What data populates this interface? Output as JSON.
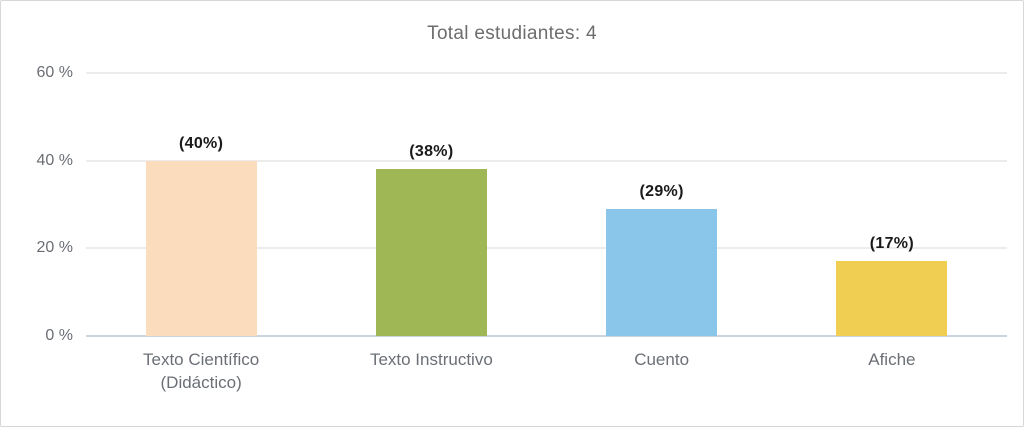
{
  "chart_data": {
    "type": "bar",
    "title": "Total estudiantes: 4",
    "categories": [
      "Texto Científico\n(Didáctico)",
      "Texto Instructivo",
      "Cuento",
      "Afiche"
    ],
    "values": [
      40,
      38,
      29,
      17
    ],
    "bar_labels": [
      "(40%)",
      "(38%)",
      "(29%)",
      "(17%)"
    ],
    "bar_colors": [
      "#FBDCBD",
      "#9FB855",
      "#8AC6E9",
      "#F0CE51"
    ],
    "yticks": [
      {
        "label": "60 %",
        "value": 60
      },
      {
        "label": "40 %",
        "value": 40
      },
      {
        "label": "20 %",
        "value": 20
      },
      {
        "label": "0 %",
        "value": 0
      }
    ],
    "ylim": [
      0,
      60
    ],
    "grid": true,
    "legend": "none",
    "colors": {
      "grid": "#ececec",
      "axis_line": "#ccd3e1",
      "title_text": "#6d6d6d",
      "tick_text": "#6a6e74",
      "bar_label_text": "#1a1a1a",
      "background": "#ffffff",
      "border": "#d6d6d6"
    }
  }
}
